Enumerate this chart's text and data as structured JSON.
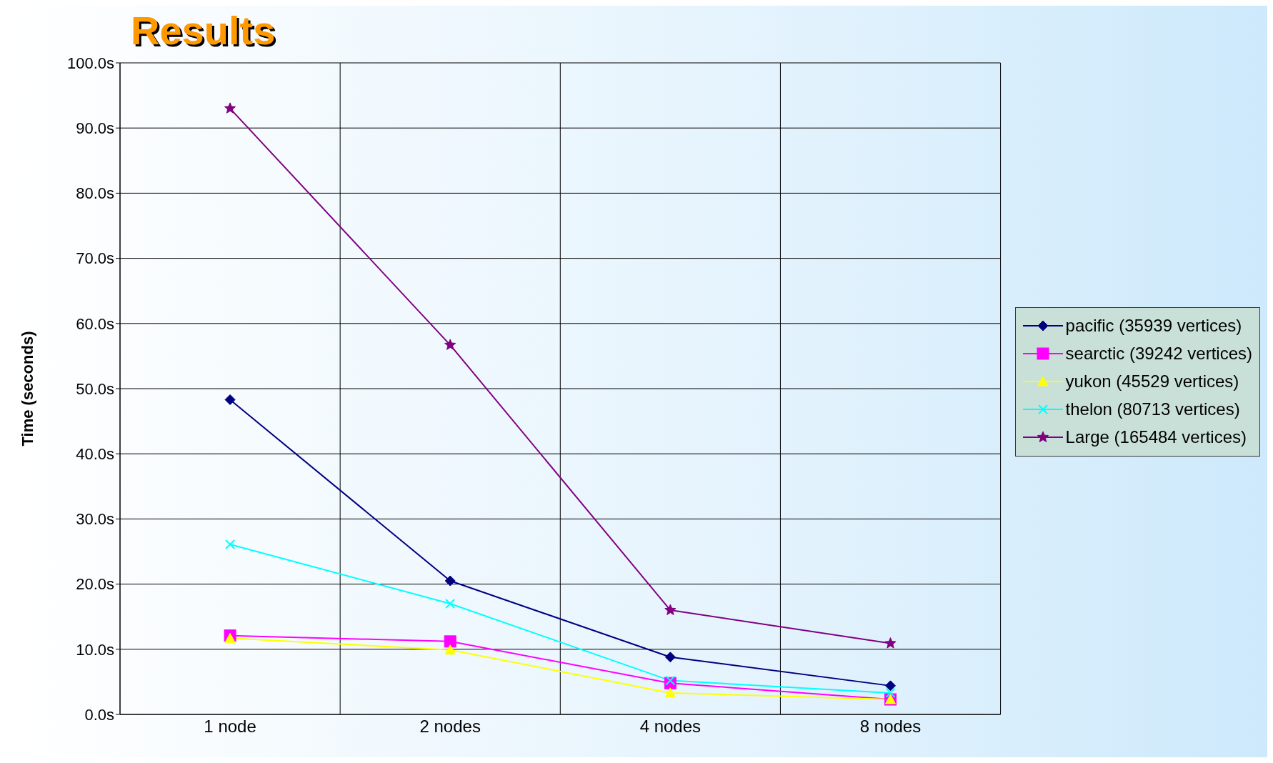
{
  "chart_data": {
    "type": "line",
    "title": "Results",
    "ylabel": "Time (seconds)",
    "categories": [
      "1 node",
      "2 nodes",
      "4 nodes",
      "8 nodes"
    ],
    "series": [
      {
        "name": "pacific (35939 vertices)",
        "color": "#000080",
        "marker": "diamond",
        "values": [
          48.3,
          20.5,
          8.8,
          4.4
        ]
      },
      {
        "name": "searctic (39242 vertices)",
        "color": "#ff00ff",
        "marker": "square",
        "values": [
          12.1,
          11.2,
          4.8,
          2.3
        ]
      },
      {
        "name": "yukon (45529 vertices)",
        "color": "#ffff00",
        "marker": "triangle",
        "values": [
          11.7,
          9.9,
          3.3,
          2.3
        ]
      },
      {
        "name": "thelon (80713 vertices)",
        "color": "#00ffff",
        "marker": "cross",
        "values": [
          26.1,
          17.0,
          5.2,
          3.3
        ]
      },
      {
        "name": "Large (165484 vertices)",
        "color": "#800080",
        "marker": "star",
        "values": [
          93.0,
          56.7,
          16.0,
          10.9
        ]
      }
    ],
    "ylim": [
      0,
      100
    ],
    "yticks": [
      {
        "value": 0,
        "label": "0.0s"
      },
      {
        "value": 10,
        "label": "10.0s"
      },
      {
        "value": 20,
        "label": "20.0s"
      },
      {
        "value": 30,
        "label": "30.0s"
      },
      {
        "value": 40,
        "label": "40.0s"
      },
      {
        "value": 50,
        "label": "50.0s"
      },
      {
        "value": 60,
        "label": "60.0s"
      },
      {
        "value": 70,
        "label": "70.0s"
      },
      {
        "value": 80,
        "label": "80.0s"
      },
      {
        "value": 90,
        "label": "90.0s"
      },
      {
        "value": 100,
        "label": "100.0s"
      }
    ],
    "grid": true,
    "legend": "right",
    "line_style": "solid"
  }
}
